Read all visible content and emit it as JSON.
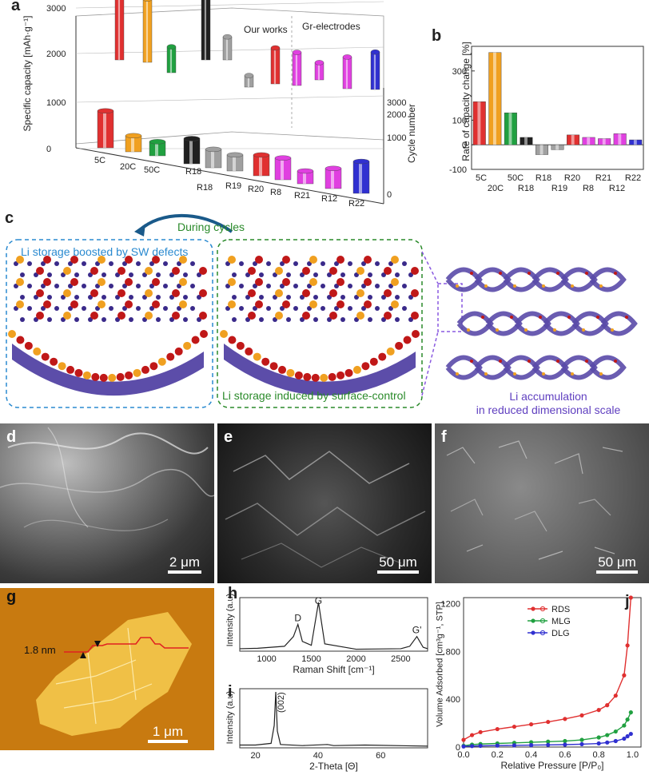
{
  "panels": {
    "a": {
      "label": "a",
      "y_axis_label": "Specific capacity [mAh·g⁻¹]",
      "z_axis_label": "Cycle number",
      "y_ticks": [
        "3000",
        "2000",
        "1000",
        "0"
      ],
      "z_ticks": [
        "3000",
        "2000",
        "1000",
        "0"
      ],
      "categories": [
        "5C",
        "20C",
        "50C",
        "R18",
        "R18",
        "R19",
        "R20",
        "R8",
        "R21",
        "R12",
        "R22"
      ],
      "legend_left": "Our works",
      "legend_right": "Gr-electrodes"
    },
    "b": {
      "label": "b",
      "y_axis_label": "Rate of capacity change [%]",
      "y_ticks": [
        "300",
        "100",
        "0",
        "-100"
      ],
      "x_row1": [
        "5C",
        "50C",
        "R18",
        "R20",
        "R21",
        "R22"
      ],
      "x_row2": [
        "20C",
        "R18",
        "R19",
        "R8",
        "R12"
      ]
    },
    "c": {
      "label": "c",
      "cycle_label": "During cycles",
      "left_box_title": "Li storage boosted by SW defects",
      "right_box_title": "Li storage induced by surface-control",
      "accum_line1": "Li accumulation",
      "accum_line2": "in reduced dimensional scale"
    },
    "d": {
      "label": "d",
      "scale": "2 μm"
    },
    "e": {
      "label": "e",
      "scale": "50 μm"
    },
    "f": {
      "label": "f",
      "scale": "50 μm"
    },
    "g": {
      "label": "g",
      "height_label": "1.8 nm",
      "scale": "1 μm"
    },
    "h": {
      "label": "h",
      "xlabel": "Raman Shift [cm⁻¹]",
      "ylabel": "Intensity (a.u)",
      "x_ticks": [
        "1000",
        "1500",
        "2000",
        "2500"
      ],
      "peaks": [
        "D",
        "G",
        "G'"
      ]
    },
    "i": {
      "label": "i",
      "xlabel": "2-Theta [Θ]",
      "ylabel": "Intensity (a.u)",
      "x_ticks": [
        "20",
        "40",
        "60"
      ],
      "peak_label": "(002)"
    },
    "j": {
      "label": "j",
      "xlabel": "Relative Pressure [P/P₀]",
      "ylabel": "Volume Adsorbed [cm³g⁻¹, STP]",
      "x_ticks": [
        "0.0",
        "0.2",
        "0.4",
        "0.6",
        "0.8",
        "1.0"
      ],
      "y_ticks": [
        "0",
        "400",
        "800",
        "1200"
      ]
    }
  },
  "colors": {
    "red": "#e03030",
    "orange": "#f0a020",
    "green": "#20a040",
    "black": "#202020",
    "gray": "#a0a0a0",
    "magenta": "#e040e0",
    "blue": "#3030d0",
    "blue_box": "#2a8ad0",
    "green_box": "#2a8a2a",
    "purple_text": "#6040c0"
  },
  "chart_data": [
    {
      "panel": "a",
      "type": "bar",
      "title": "",
      "ylabel": "Specific capacity [mAh·g⁻¹]",
      "zlabel": "Cycle number",
      "ylim": [
        0,
        3000
      ],
      "categories": [
        "5C",
        "20C",
        "50C",
        "R18",
        "R18",
        "R19",
        "R20",
        "R8",
        "R21",
        "R12",
        "R22"
      ],
      "series": [
        {
          "name": "",
          "values": [
            1100,
            480,
            420,
            750,
            550,
            480,
            620,
            650,
            380,
            600,
            950
          ]
        },
        {
          "name": "",
          "values": [
            2650,
            2200,
            900,
            2300,
            800,
            400,
            1250,
            1150,
            600,
            1100,
            1300
          ]
        }
      ]
    },
    {
      "panel": "b",
      "type": "bar",
      "ylabel": "Rate of capacity change [%]",
      "ylim": [
        -100,
        400
      ],
      "categories": [
        "5C",
        "20C",
        "50C",
        "R18",
        "R18",
        "R19",
        "R20",
        "R8",
        "R21",
        "R12",
        "R22"
      ],
      "values": [
        175,
        375,
        130,
        30,
        -40,
        -20,
        40,
        30,
        25,
        45,
        20
      ]
    },
    {
      "panel": "h",
      "type": "line",
      "xlabel": "Raman Shift [cm⁻¹]",
      "ylabel": "Intensity (a.u)",
      "xlim": [
        700,
        2800
      ],
      "x": [
        700,
        900,
        1200,
        1300,
        1350,
        1400,
        1500,
        1580,
        1650,
        2000,
        2500,
        2600,
        2680,
        2750,
        2800
      ],
      "y": [
        0.05,
        0.06,
        0.1,
        0.3,
        0.55,
        0.2,
        0.12,
        1.0,
        0.15,
        0.04,
        0.05,
        0.1,
        0.3,
        0.08,
        0.05
      ]
    },
    {
      "panel": "i",
      "type": "line",
      "xlabel": "2-Theta [Θ]",
      "xlim": [
        15,
        75
      ],
      "x": [
        15,
        20,
        25,
        26,
        26.5,
        27,
        28,
        35,
        43,
        45,
        55,
        75
      ],
      "y": [
        0.05,
        0.05,
        0.08,
        0.4,
        1.0,
        0.3,
        0.06,
        0.04,
        0.06,
        0.04,
        0.05,
        0.03
      ]
    },
    {
      "panel": "j",
      "type": "line",
      "xlabel": "Relative Pressure [P/P₀]",
      "ylabel": "Volume Adsorbed [cm³g⁻¹, STP]",
      "xlim": [
        0,
        1.05
      ],
      "ylim": [
        0,
        1250
      ],
      "x": [
        0.0,
        0.05,
        0.1,
        0.2,
        0.3,
        0.4,
        0.5,
        0.6,
        0.7,
        0.8,
        0.85,
        0.9,
        0.95,
        0.97,
        0.99
      ],
      "series": [
        {
          "name": "RDS",
          "values": [
            60,
            100,
            125,
            150,
            170,
            190,
            210,
            235,
            265,
            310,
            350,
            430,
            600,
            850,
            1250
          ]
        },
        {
          "name": "MLG",
          "values": [
            10,
            20,
            25,
            30,
            35,
            40,
            45,
            50,
            60,
            80,
            100,
            130,
            180,
            230,
            290
          ]
        },
        {
          "name": "DLG",
          "values": [
            5,
            8,
            10,
            12,
            14,
            16,
            18,
            20,
            24,
            30,
            38,
            50,
            70,
            90,
            110
          ]
        }
      ]
    }
  ]
}
